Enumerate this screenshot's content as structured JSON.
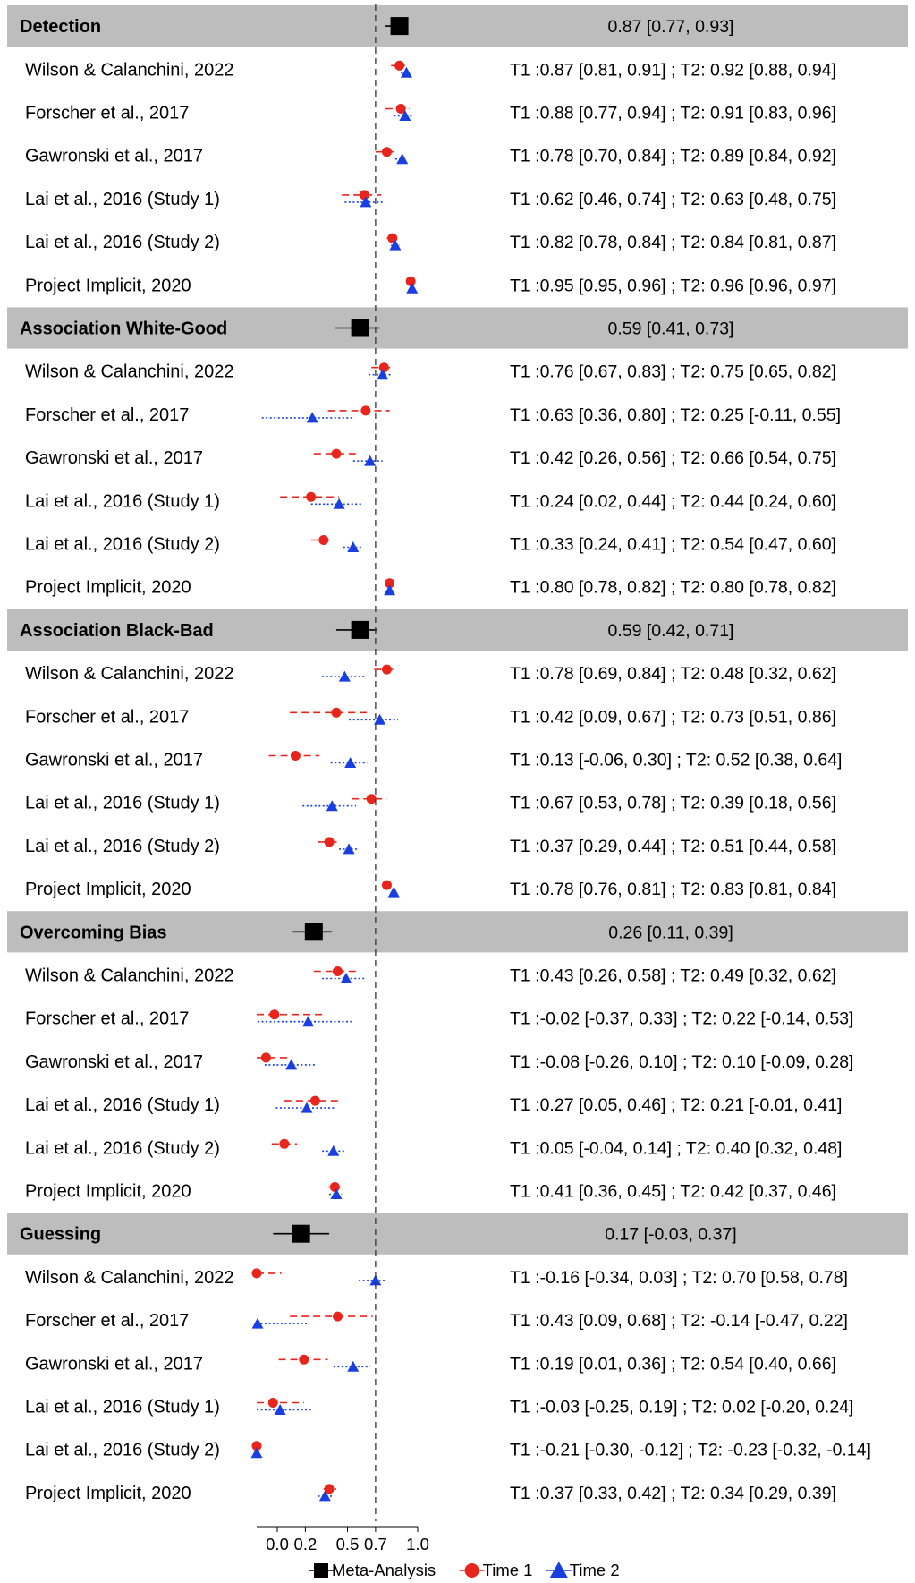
{
  "chart_data": {
    "type": "forest",
    "title": "",
    "xlabel": "",
    "ylabel": "",
    "xlim": [
      -0.1,
      1.0
    ],
    "xticks": [
      0.0,
      0.2,
      0.5,
      0.7,
      1.0
    ],
    "xtick_labels": [
      "0.0",
      "0.2",
      "0.5",
      "0.7",
      "1.0"
    ],
    "reference_line": 0.7,
    "colors": {
      "meta": "#000000",
      "time1": "#e8251d",
      "time2": "#1a3fe0",
      "group_band": "#bdbdbd"
    },
    "legend": {
      "position": "bottom",
      "entries": [
        {
          "label": "Meta-Analysis",
          "marker": "square",
          "color": "#000000"
        },
        {
          "label": "Time 1",
          "marker": "circle",
          "color": "#e8251d"
        },
        {
          "label": "Time 2",
          "marker": "triangle",
          "color": "#1a3fe0"
        }
      ]
    },
    "groups": [
      {
        "name": "Detection",
        "meta": {
          "est": 0.87,
          "lo": 0.77,
          "hi": 0.93,
          "label": "0.87 [0.77, 0.93]"
        },
        "studies": [
          {
            "name": "Wilson & Calanchini, 2022",
            "t1": [
              0.87,
              0.81,
              0.91
            ],
            "t2": [
              0.92,
              0.88,
              0.94
            ],
            "label": "T1 :0.87 [0.81, 0.91] ; T2: 0.92 [0.88, 0.94]"
          },
          {
            "name": "Forscher et al., 2017",
            "t1": [
              0.88,
              0.77,
              0.94
            ],
            "t2": [
              0.91,
              0.83,
              0.96
            ],
            "label": "T1 :0.88 [0.77, 0.94] ; T2: 0.91 [0.83, 0.96]"
          },
          {
            "name": "Gawronski et al., 2017",
            "t1": [
              0.78,
              0.7,
              0.84
            ],
            "t2": [
              0.89,
              0.84,
              0.92
            ],
            "label": "T1 :0.78 [0.70, 0.84] ; T2: 0.89 [0.84, 0.92]"
          },
          {
            "name": "Lai et al., 2016 (Study 1)",
            "t1": [
              0.62,
              0.46,
              0.74
            ],
            "t2": [
              0.63,
              0.48,
              0.75
            ],
            "label": "T1 :0.62 [0.46, 0.74] ; T2: 0.63 [0.48, 0.75]"
          },
          {
            "name": "Lai et al., 2016 (Study 2)",
            "t1": [
              0.82,
              0.78,
              0.84
            ],
            "t2": [
              0.84,
              0.81,
              0.87
            ],
            "label": "T1 :0.82 [0.78, 0.84] ; T2: 0.84 [0.81, 0.87]"
          },
          {
            "name": "Project Implicit, 2020",
            "t1": [
              0.95,
              0.95,
              0.96
            ],
            "t2": [
              0.96,
              0.96,
              0.97
            ],
            "label": "T1 :0.95 [0.95, 0.96] ; T2: 0.96 [0.96, 0.97]"
          }
        ]
      },
      {
        "name": "Association White-Good",
        "meta": {
          "est": 0.59,
          "lo": 0.41,
          "hi": 0.73,
          "label": "0.59 [0.41, 0.73]"
        },
        "studies": [
          {
            "name": "Wilson & Calanchini, 2022",
            "t1": [
              0.76,
              0.67,
              0.83
            ],
            "t2": [
              0.75,
              0.65,
              0.82
            ],
            "label": "T1 :0.76 [0.67, 0.83] ; T2: 0.75 [0.65, 0.82]"
          },
          {
            "name": "Forscher et al., 2017",
            "t1": [
              0.63,
              0.36,
              0.8
            ],
            "t2": [
              0.25,
              -0.11,
              0.55
            ],
            "label": "T1 :0.63 [0.36, 0.80] ; T2: 0.25 [-0.11, 0.55]"
          },
          {
            "name": "Gawronski et al., 2017",
            "t1": [
              0.42,
              0.26,
              0.56
            ],
            "t2": [
              0.66,
              0.54,
              0.75
            ],
            "label": "T1 :0.42 [0.26, 0.56] ; T2: 0.66 [0.54, 0.75]"
          },
          {
            "name": "Lai et al., 2016 (Study 1)",
            "t1": [
              0.24,
              0.02,
              0.44
            ],
            "t2": [
              0.44,
              0.24,
              0.6
            ],
            "label": "T1 :0.24 [0.02, 0.44] ; T2: 0.44 [0.24, 0.60]"
          },
          {
            "name": "Lai et al., 2016 (Study 2)",
            "t1": [
              0.33,
              0.24,
              0.41
            ],
            "t2": [
              0.54,
              0.47,
              0.6
            ],
            "label": "T1 :0.33 [0.24, 0.41] ; T2: 0.54 [0.47, 0.60]"
          },
          {
            "name": "Project Implicit, 2020",
            "t1": [
              0.8,
              0.78,
              0.82
            ],
            "t2": [
              0.8,
              0.78,
              0.82
            ],
            "label": "T1 :0.80 [0.78, 0.82] ; T2: 0.80 [0.78, 0.82]"
          }
        ]
      },
      {
        "name": "Association Black-Bad",
        "meta": {
          "est": 0.59,
          "lo": 0.42,
          "hi": 0.71,
          "label": "0.59 [0.42, 0.71]"
        },
        "studies": [
          {
            "name": "Wilson & Calanchini, 2022",
            "t1": [
              0.78,
              0.69,
              0.84
            ],
            "t2": [
              0.48,
              0.32,
              0.62
            ],
            "label": "T1 :0.78 [0.69, 0.84] ; T2: 0.48 [0.32, 0.62]"
          },
          {
            "name": "Forscher et al., 2017",
            "t1": [
              0.42,
              0.09,
              0.67
            ],
            "t2": [
              0.73,
              0.51,
              0.86
            ],
            "label": "T1 :0.42 [0.09, 0.67] ; T2: 0.73 [0.51, 0.86]"
          },
          {
            "name": "Gawronski et al., 2017",
            "t1": [
              0.13,
              -0.06,
              0.3
            ],
            "t2": [
              0.52,
              0.38,
              0.64
            ],
            "label": "T1 :0.13 [-0.06, 0.30] ; T2: 0.52 [0.38, 0.64]"
          },
          {
            "name": "Lai et al., 2016 (Study 1)",
            "t1": [
              0.67,
              0.53,
              0.78
            ],
            "t2": [
              0.39,
              0.18,
              0.56
            ],
            "label": "T1 :0.67 [0.53, 0.78] ; T2: 0.39 [0.18, 0.56]"
          },
          {
            "name": "Lai et al., 2016 (Study 2)",
            "t1": [
              0.37,
              0.29,
              0.44
            ],
            "t2": [
              0.51,
              0.44,
              0.58
            ],
            "label": "T1 :0.37 [0.29, 0.44] ; T2: 0.51 [0.44, 0.58]"
          },
          {
            "name": "Project Implicit, 2020",
            "t1": [
              0.78,
              0.76,
              0.81
            ],
            "t2": [
              0.83,
              0.81,
              0.84
            ],
            "label": "T1 :0.78 [0.76, 0.81] ; T2: 0.83 [0.81, 0.84]"
          }
        ]
      },
      {
        "name": "Overcoming Bias",
        "meta": {
          "est": 0.26,
          "lo": 0.11,
          "hi": 0.39,
          "label": "0.26 [0.11, 0.39]"
        },
        "studies": [
          {
            "name": "Wilson & Calanchini, 2022",
            "t1": [
              0.43,
              0.26,
              0.58
            ],
            "t2": [
              0.49,
              0.32,
              0.62
            ],
            "label": "T1 :0.43 [0.26, 0.58] ; T2: 0.49 [0.32, 0.62]"
          },
          {
            "name": "Forscher et al., 2017",
            "t1": [
              -0.02,
              -0.37,
              0.33
            ],
            "t2": [
              0.22,
              -0.14,
              0.53
            ],
            "label": "T1 :-0.02 [-0.37, 0.33] ; T2: 0.22 [-0.14, 0.53]"
          },
          {
            "name": "Gawronski et al., 2017",
            "t1": [
              -0.08,
              -0.26,
              0.1
            ],
            "t2": [
              0.1,
              -0.09,
              0.28
            ],
            "label": "T1 :-0.08 [-0.26, 0.10] ; T2: 0.10 [-0.09, 0.28]"
          },
          {
            "name": "Lai et al., 2016 (Study 1)",
            "t1": [
              0.27,
              0.05,
              0.46
            ],
            "t2": [
              0.21,
              -0.01,
              0.41
            ],
            "label": "T1 :0.27 [0.05, 0.46] ; T2: 0.21 [-0.01, 0.41]"
          },
          {
            "name": "Lai et al., 2016 (Study 2)",
            "t1": [
              0.05,
              -0.04,
              0.14
            ],
            "t2": [
              0.4,
              0.32,
              0.48
            ],
            "label": "T1 :0.05 [-0.04, 0.14] ; T2: 0.40 [0.32, 0.48]"
          },
          {
            "name": "Project Implicit, 2020",
            "t1": [
              0.41,
              0.36,
              0.45
            ],
            "t2": [
              0.42,
              0.37,
              0.46
            ],
            "label": "T1 :0.41 [0.36, 0.45] ; T2: 0.42 [0.37, 0.46]"
          }
        ]
      },
      {
        "name": "Guessing",
        "meta": {
          "est": 0.17,
          "lo": -0.03,
          "hi": 0.37,
          "label": "0.17 [-0.03, 0.37]"
        },
        "studies": [
          {
            "name": "Wilson & Calanchini, 2022",
            "t1": [
              -0.16,
              -0.34,
              0.03
            ],
            "t2": [
              0.7,
              0.58,
              0.78
            ],
            "label": "T1 :-0.16 [-0.34, 0.03] ; T2: 0.70 [0.58, 0.78]"
          },
          {
            "name": "Forscher et al., 2017",
            "t1": [
              0.43,
              0.09,
              0.68
            ],
            "t2": [
              -0.14,
              -0.47,
              0.22
            ],
            "label": "T1 :0.43 [0.09, 0.68] ; T2: -0.14 [-0.47, 0.22]"
          },
          {
            "name": "Gawronski et al., 2017",
            "t1": [
              0.19,
              0.01,
              0.36
            ],
            "t2": [
              0.54,
              0.4,
              0.66
            ],
            "label": "T1 :0.19 [0.01, 0.36] ; T2: 0.54 [0.40, 0.66]"
          },
          {
            "name": "Lai et al., 2016 (Study 1)",
            "t1": [
              -0.03,
              -0.25,
              0.19
            ],
            "t2": [
              0.02,
              -0.2,
              0.24
            ],
            "label": "T1 :-0.03 [-0.25, 0.19] ; T2: 0.02 [-0.20, 0.24]"
          },
          {
            "name": "Lai et al., 2016 (Study 2)",
            "t1": [
              -0.21,
              -0.3,
              -0.12
            ],
            "t2": [
              -0.23,
              -0.32,
              -0.14
            ],
            "label": "T1 :-0.21 [-0.30, -0.12] ; T2: -0.23 [-0.32, -0.14]"
          },
          {
            "name": "Project Implicit, 2020",
            "t1": [
              0.37,
              0.33,
              0.42
            ],
            "t2": [
              0.34,
              0.29,
              0.39
            ],
            "label": "T1 :0.37 [0.33, 0.42] ; T2: 0.34 [0.29, 0.39]"
          }
        ]
      }
    ]
  }
}
